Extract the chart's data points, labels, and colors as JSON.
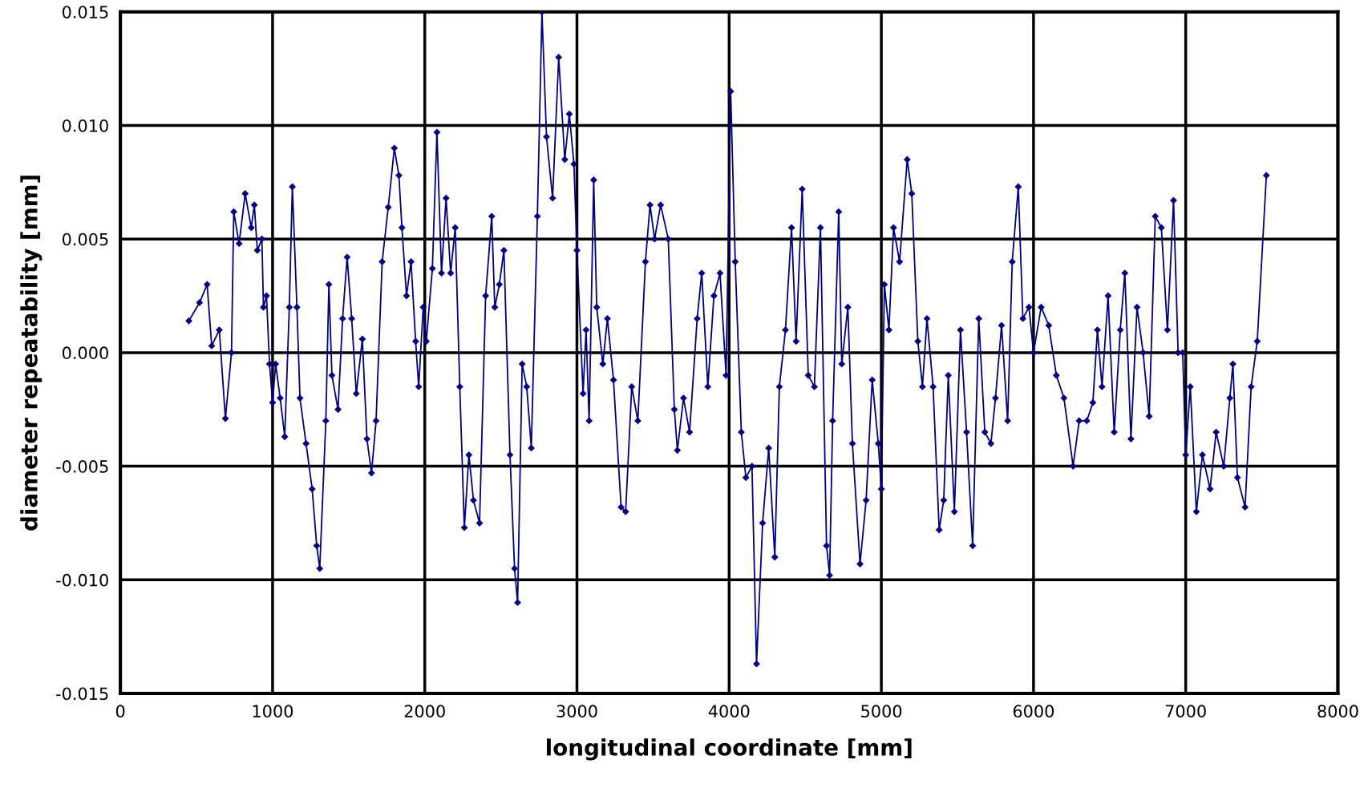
{
  "chart_data": {
    "type": "line",
    "xlabel": "longitudinal coordinate [mm]",
    "ylabel": "diameter repeatability [mm]",
    "xlim": [
      0,
      8000
    ],
    "ylim": [
      -0.015,
      0.015
    ],
    "xticks": [
      0,
      1000,
      2000,
      3000,
      4000,
      5000,
      6000,
      7000,
      8000
    ],
    "yticks": [
      {
        "value": -0.015,
        "label": "-0.015"
      },
      {
        "value": -0.01,
        "label": "-0.010"
      },
      {
        "value": -0.005,
        "label": "-0.005"
      },
      {
        "value": 0,
        "label": "0.000"
      },
      {
        "value": 0.005,
        "label": "0.005"
      },
      {
        "value": 0.01,
        "label": "0.010"
      },
      {
        "value": 0.015,
        "label": "0.015"
      }
    ],
    "grid": true,
    "marker": "diamond",
    "line_style": "solid",
    "x": [
      450,
      520,
      570,
      600,
      650,
      690,
      730,
      745,
      780,
      820,
      860,
      880,
      900,
      930,
      940,
      960,
      980,
      1000,
      1020,
      1050,
      1080,
      1110,
      1130,
      1160,
      1180,
      1220,
      1260,
      1290,
      1310,
      1350,
      1370,
      1390,
      1430,
      1460,
      1490,
      1520,
      1550,
      1590,
      1620,
      1650,
      1680,
      1720,
      1760,
      1800,
      1830,
      1850,
      1880,
      1910,
      1940,
      1960,
      1990,
      2010,
      2050,
      2080,
      2110,
      2140,
      2170,
      2200,
      2230,
      2260,
      2290,
      2320,
      2360,
      2400,
      2440,
      2460,
      2490,
      2520,
      2560,
      2590,
      2610,
      2640,
      2670,
      2700,
      2740,
      2770,
      2800,
      2840,
      2880,
      2920,
      2950,
      2980,
      3000,
      3040,
      3060,
      3080,
      3110,
      3130,
      3170,
      3200,
      3240,
      3290,
      3320,
      3360,
      3400,
      3450,
      3480,
      3510,
      3550,
      3600,
      3640,
      3660,
      3700,
      3740,
      3790,
      3820,
      3860,
      3900,
      3940,
      3980,
      4010,
      4040,
      4080,
      4110,
      4150,
      4180,
      4220,
      4260,
      4300,
      4330,
      4370,
      4410,
      4440,
      4480,
      4520,
      4560,
      4600,
      4640,
      4660,
      4680,
      4720,
      4740,
      4780,
      4810,
      4860,
      4900,
      4940,
      4980,
      5000,
      5020,
      5050,
      5080,
      5120,
      5170,
      5200,
      5240,
      5270,
      5300,
      5340,
      5380,
      5410,
      5440,
      5480,
      5520,
      5560,
      5600,
      5640,
      5680,
      5720,
      5750,
      5790,
      5830,
      5860,
      5900,
      5930,
      5970,
      6000,
      6050,
      6100,
      6150,
      6200,
      6260,
      6300,
      6350,
      6390,
      6420,
      6450,
      6490,
      6530,
      6570,
      6600,
      6640,
      6680,
      6720,
      6760,
      6800,
      6840,
      6880,
      6920,
      6950,
      6980,
      7000,
      7030,
      7070,
      7110,
      7160,
      7200,
      7250,
      7290,
      7310,
      7340,
      7390,
      7430,
      7470,
      7530
    ],
    "series": [
      {
        "color": "#000080",
        "values": [
          0.0014,
          0.0022,
          0.003,
          0.0003,
          0.001,
          -0.0029,
          0.0,
          0.0062,
          0.0048,
          0.007,
          0.0055,
          0.0065,
          0.0045,
          0.005,
          0.002,
          0.0025,
          -0.0005,
          -0.0022,
          -0.0005,
          -0.002,
          -0.0037,
          0.002,
          0.0073,
          0.002,
          -0.002,
          -0.004,
          -0.006,
          -0.0085,
          -0.0095,
          -0.003,
          0.003,
          -0.001,
          -0.0025,
          0.0015,
          0.0042,
          0.0015,
          -0.0018,
          0.0006,
          -0.0038,
          -0.0053,
          -0.003,
          0.004,
          0.0064,
          0.009,
          0.0078,
          0.0055,
          0.0025,
          0.004,
          0.0005,
          -0.0015,
          0.002,
          0.0005,
          0.0037,
          0.0097,
          0.0035,
          0.0068,
          0.0035,
          0.0055,
          -0.0015,
          -0.0077,
          -0.0045,
          -0.0065,
          -0.0075,
          0.0025,
          0.006,
          0.002,
          0.003,
          0.0045,
          -0.0045,
          -0.0095,
          -0.011,
          -0.0005,
          -0.0015,
          -0.0042,
          0.006,
          0.015,
          0.0095,
          0.0068,
          0.013,
          0.0085,
          0.0105,
          0.0083,
          0.0045,
          -0.0018,
          0.001,
          -0.003,
          0.0076,
          0.002,
          -0.0005,
          0.0015,
          -0.0012,
          -0.0068,
          -0.007,
          -0.0015,
          -0.003,
          0.004,
          0.0065,
          0.005,
          0.0065,
          0.005,
          -0.0025,
          -0.0043,
          -0.002,
          -0.0035,
          0.0015,
          0.0035,
          -0.0015,
          0.0025,
          0.0035,
          -0.001,
          0.0115,
          0.004,
          -0.0035,
          -0.0055,
          -0.005,
          -0.0137,
          -0.0075,
          -0.0042,
          -0.009,
          -0.0015,
          0.001,
          0.0055,
          0.0005,
          0.0072,
          -0.001,
          -0.0015,
          0.0055,
          -0.0085,
          -0.0098,
          -0.003,
          0.0062,
          -0.0005,
          0.002,
          -0.004,
          -0.0093,
          -0.0065,
          -0.0012,
          -0.004,
          -0.006,
          0.003,
          0.001,
          0.0055,
          0.004,
          0.0085,
          0.007,
          0.0005,
          -0.0015,
          0.0015,
          -0.0015,
          -0.0078,
          -0.0065,
          -0.001,
          -0.007,
          0.001,
          -0.0035,
          -0.0085,
          0.0015,
          -0.0035,
          -0.004,
          -0.002,
          0.0012,
          -0.003,
          0.004,
          0.0073,
          0.0015,
          0.002,
          0.0,
          0.002,
          0.0012,
          -0.001,
          -0.002,
          -0.005,
          -0.003,
          -0.003,
          -0.0022,
          0.001,
          -0.0015,
          0.0025,
          -0.0035,
          0.001,
          0.0035,
          -0.0038,
          0.002,
          0.0,
          -0.0028,
          0.006,
          0.0055,
          0.001,
          0.0067,
          0.0,
          0.0,
          -0.0045,
          -0.0015,
          -0.007,
          -0.0045,
          -0.006,
          -0.0035,
          -0.005,
          -0.002,
          -0.0005,
          -0.0055,
          -0.0068,
          -0.0015,
          0.0005,
          0.0078
        ]
      }
    ]
  }
}
